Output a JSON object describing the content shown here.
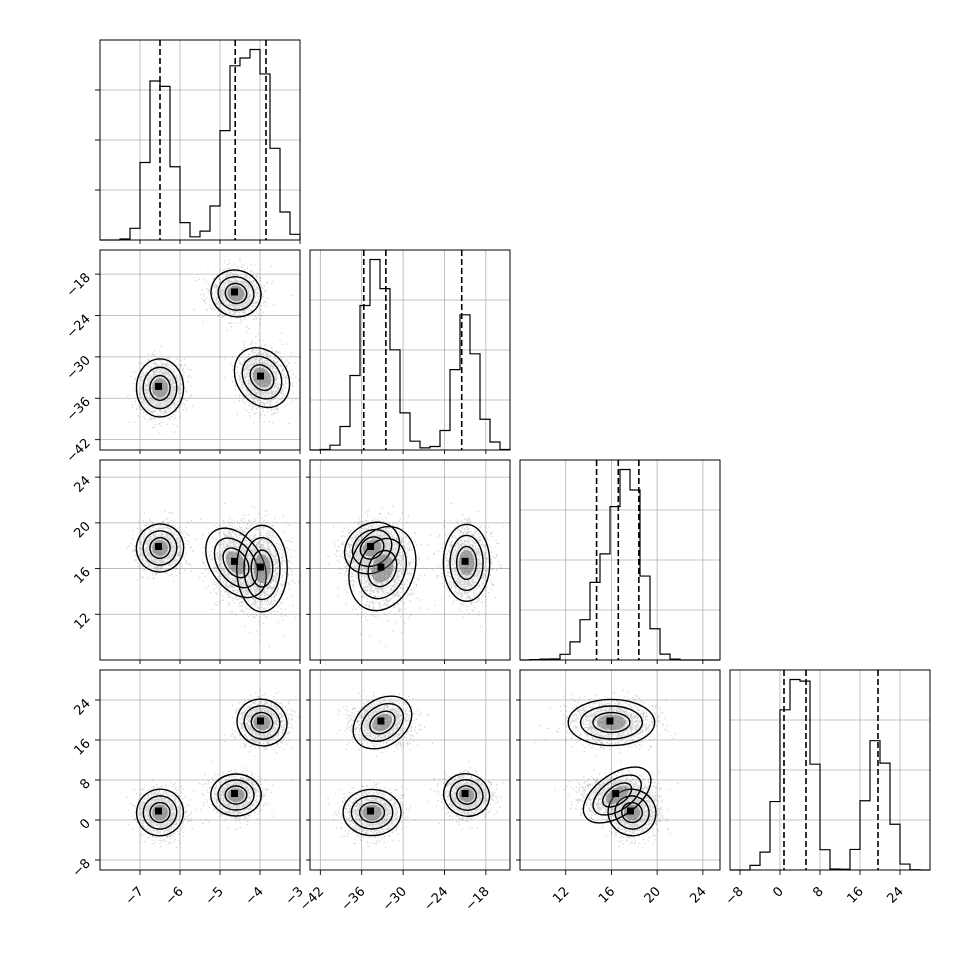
{
  "chart_data": {
    "type": "corner",
    "parameters": [
      {
        "range": [
          -8,
          -3
        ],
        "ticks": [
          -7,
          -6,
          -5,
          -4,
          -3
        ],
        "tick_labels": [
          "−7",
          "−6",
          "−5",
          "−4",
          "−3"
        ],
        "quantiles": [
          -6.5,
          -4.62,
          -3.85
        ],
        "modes": [
          {
            "mean": -6.5,
            "sd": 0.28,
            "w": 0.33
          },
          {
            "mean": -4.6,
            "sd": 0.3,
            "w": 0.34
          },
          {
            "mean": -3.95,
            "sd": 0.3,
            "w": 0.33
          }
        ]
      },
      {
        "range": [
          -43.5,
          -14.5
        ],
        "ticks": [
          -42,
          -36,
          -30,
          -24,
          -18
        ],
        "tick_labels": [
          "−42",
          "−36",
          "−30",
          "−24",
          "−18"
        ],
        "quantiles": [
          -35.7,
          -32.5,
          -21.5
        ],
        "modes": [
          {
            "mean": -34.5,
            "sd": 2.0,
            "w": 0.33
          },
          {
            "mean": -20.8,
            "sd": 1.6,
            "w": 0.34
          },
          {
            "mean": -33.0,
            "sd": 2.2,
            "w": 0.33
          }
        ]
      },
      {
        "range": [
          8,
          25.5
        ],
        "ticks": [
          12,
          16,
          20,
          24
        ],
        "tick_labels": [
          "12",
          "16",
          "20",
          "24"
        ],
        "quantiles": [
          14.7,
          16.6,
          18.4
        ],
        "modes": [
          {
            "mean": 17.8,
            "sd": 1.0,
            "w": 0.33
          },
          {
            "mean": 16.5,
            "sd": 1.6,
            "w": 0.34
          },
          {
            "mean": 16.0,
            "sd": 1.8,
            "w": 0.33
          }
        ]
      },
      {
        "range": [
          -10,
          30
        ],
        "ticks": [
          -8,
          0,
          8,
          16,
          24
        ],
        "tick_labels": [
          "−8",
          "0",
          "8",
          "16",
          "24"
        ],
        "quantiles": [
          0.8,
          5.2,
          19.6
        ],
        "modes": [
          {
            "mean": 1.5,
            "sd": 2.2,
            "w": 0.33
          },
          {
            "mean": 5.0,
            "sd": 2.0,
            "w": 0.34
          },
          {
            "mean": 19.5,
            "sd": 2.2,
            "w": 0.33
          }
        ]
      }
    ],
    "histogram_bins": 20,
    "quantile_levels": [
      0.16,
      0.5,
      0.84
    ],
    "grid": true,
    "scatter_color": "#000000",
    "density_colormap": [
      "#ffffff",
      "#000000"
    ]
  }
}
